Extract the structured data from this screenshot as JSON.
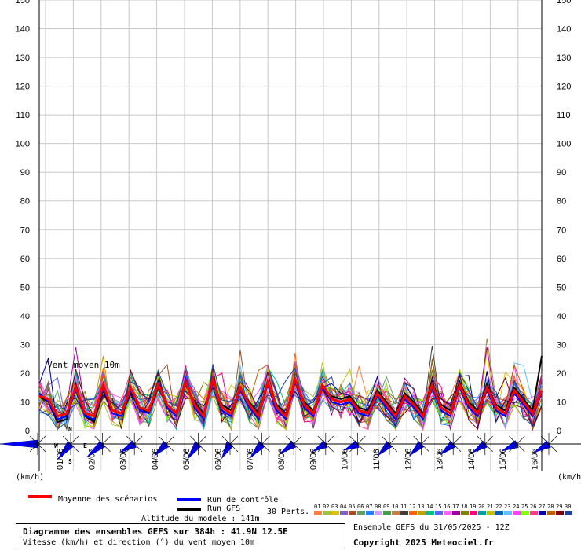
{
  "chart_data": {
    "type": "line",
    "y_ticks": [
      "0",
      "10",
      "20",
      "30",
      "40",
      "50",
      "60",
      "70",
      "80",
      "90",
      "100",
      "110",
      "120",
      "130",
      "140",
      "150"
    ],
    "ylim": [
      0,
      150
    ],
    "x_ticks": [
      "01/06",
      "02/06",
      "03/06",
      "04/06",
      "05/06",
      "06/06",
      "07/06",
      "08/06",
      "09/06",
      "10/06",
      "11/06",
      "12/06",
      "13/06",
      "14/06",
      "15/06",
      "16/06"
    ],
    "unit_left": "(km/h)",
    "unit_right": "(km/h)",
    "panel_label": "Vent moyen 10m",
    "mean_series": {
      "name": "Moyenne des scénarios",
      "color": "#ff0000",
      "values": [
        12,
        11,
        5,
        6,
        15,
        6,
        5,
        16,
        7,
        6,
        15,
        8,
        7,
        16,
        9,
        6,
        17,
        9,
        5,
        18,
        8,
        6,
        15,
        9,
        5,
        17,
        8,
        5,
        18,
        9,
        6,
        16,
        11,
        10,
        11,
        7,
        6,
        13,
        9,
        5,
        12,
        9,
        5,
        16,
        8,
        6,
        16,
        9,
        6,
        15,
        8,
        6,
        14,
        10,
        6,
        14
      ]
    },
    "control_series": {
      "name": "Run de contrôle",
      "color": "#0000ff",
      "values": [
        13,
        10,
        4,
        5,
        14,
        5,
        4,
        15,
        6,
        5,
        14,
        7,
        6,
        17,
        8,
        5,
        18,
        8,
        4,
        19,
        7,
        5,
        14,
        8,
        4,
        16,
        7,
        4,
        17,
        8,
        5,
        15,
        10,
        9,
        10,
        6,
        5,
        12,
        8,
        4,
        11,
        8,
        4,
        15,
        7,
        5,
        15,
        8,
        5,
        14,
        7,
        5,
        13,
        9,
        5,
        13
      ]
    },
    "gfs_series": {
      "name": "Run GFS",
      "color": "#000000",
      "values": [
        12,
        10,
        3,
        4,
        16,
        5,
        3,
        14,
        6,
        5,
        13,
        8,
        6,
        15,
        9,
        6,
        16,
        10,
        6,
        17,
        9,
        7,
        14,
        10,
        6,
        16,
        9,
        6,
        17,
        10,
        7,
        15,
        12,
        11,
        12,
        8,
        7,
        14,
        10,
        6,
        13,
        10,
        6,
        17,
        9,
        7,
        17,
        10,
        7,
        16,
        9,
        7,
        15,
        11,
        7,
        26
      ]
    },
    "perturbation_colors": [
      "#ff8040",
      "#a0c040",
      "#e0c000",
      "#8060c0",
      "#a05020",
      "#60a060",
      "#2080ff",
      "#d0a0ff",
      "#40a040",
      "#c08040",
      "#404040",
      "#ff6000",
      "#c0a000",
      "#00c080",
      "#6060ff",
      "#ff60ff",
      "#a000a0",
      "#808000",
      "#ff0080",
      "#00a0a0",
      "#c0c000",
      "#0060c0",
      "#60c0ff",
      "#ff40ff",
      "#80ff00",
      "#ff4080",
      "#0000a0",
      "#c06000",
      "#800000",
      "#2040a0"
    ],
    "wind_directions_deg": [
      270,
      220,
      230,
      240,
      225,
      215,
      210,
      220,
      235,
      240,
      245,
      225,
      225,
      230,
      235,
      245,
      240
    ],
    "wind_lengths": [
      1.0,
      0.55,
      0.55,
      0.45,
      0.45,
      0.5,
      0.45,
      0.5,
      0.45,
      0.4,
      0.4,
      0.45,
      0.45,
      0.45,
      0.4,
      0.45,
      0.45
    ]
  },
  "compass": {
    "n": "N",
    "s": "S",
    "e": "E",
    "w": "W"
  },
  "legend": {
    "mean_label": "Moyenne des scénarios",
    "control_label": "Run de contrôle",
    "gfs_label": "Run GFS",
    "altitude": "Altitude du modele : 141m",
    "perts_label": "30 Perts.",
    "pert_numbers": [
      "01",
      "02",
      "03",
      "04",
      "05",
      "06",
      "07",
      "08",
      "09",
      "10",
      "11",
      "12",
      "13",
      "14",
      "15",
      "16",
      "17",
      "18",
      "19",
      "20",
      "21",
      "22",
      "23",
      "24",
      "25",
      "26",
      "27",
      "28",
      "29",
      "30"
    ]
  },
  "footer": {
    "title": "Diagramme des ensembles GEFS sur 384h : 41.9N 12.5E",
    "subtitle": "Vitesse (km/h) et direction (°) du vent moyen 10m",
    "run_info": "Ensemble GEFS du 31/05/2025 - 12Z",
    "copyright": "Copyright 2025 Meteociel.fr"
  }
}
